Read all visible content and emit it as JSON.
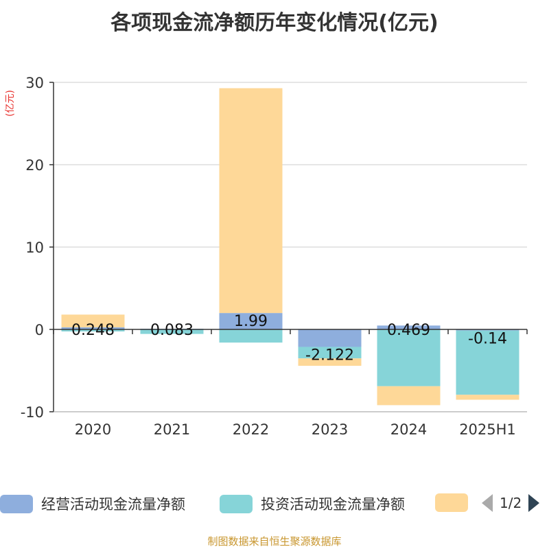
{
  "title": "各项现金流净额历年变化情况(亿元)",
  "unit": "(亿元)",
  "footer": "制图数据来自恒生聚源数据库",
  "legend": {
    "items": [
      {
        "label": "经营活动现金流量净额",
        "color": "#8eaedd"
      },
      {
        "label": "投资活动现金流量净额",
        "color": "#86d4d8"
      },
      {
        "label": "",
        "color": "#fed898"
      }
    ],
    "page": "1/2"
  },
  "chart_data": {
    "type": "bar",
    "stacked": true,
    "categories": [
      "2020",
      "2021",
      "2022",
      "2023",
      "2024",
      "2025H1"
    ],
    "ylim": [
      -10,
      30
    ],
    "yticks": [
      -10,
      0,
      10,
      20,
      30
    ],
    "grid": true,
    "legend_position": "bottom",
    "series": [
      {
        "name": "经营活动现金流量净额",
        "color": "#8eaedd",
        "values": [
          0.248,
          0.083,
          1.99,
          -2.122,
          0.469,
          -0.14
        ]
      },
      {
        "name": "投资活动现金流量净额",
        "color": "#86d4d8",
        "values": [
          -0.25,
          -0.55,
          -1.6,
          -1.4,
          -6.9,
          -7.8
        ]
      },
      {
        "color": "#fed898",
        "values": [
          1.55,
          0.0,
          27.3,
          -0.9,
          -2.3,
          -0.6
        ]
      }
    ],
    "data_labels": [
      "0.248",
      "0.083",
      "1.99",
      "-2.122",
      "0.469",
      "-0.14"
    ]
  }
}
